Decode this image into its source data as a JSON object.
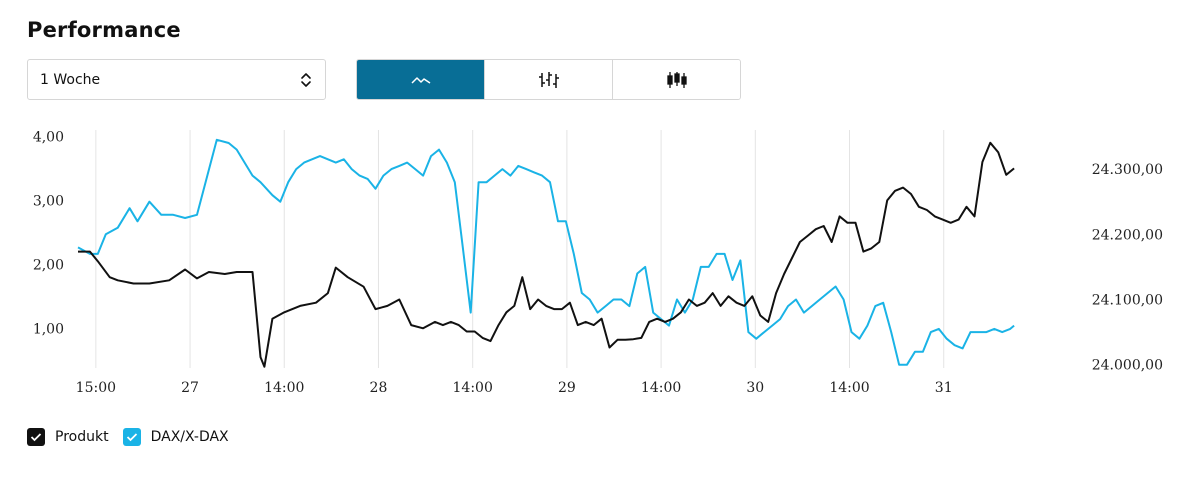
{
  "header": {
    "title": "Performance"
  },
  "period_select": {
    "value": "1 Woche"
  },
  "chart_types": [
    {
      "name": "line-chart",
      "active": true
    },
    {
      "name": "ohlc-chart",
      "active": false
    },
    {
      "name": "candlestick-chart",
      "active": false
    }
  ],
  "legend": [
    {
      "label": "Produkt",
      "color": "#111111"
    },
    {
      "label": "DAX/X-DAX",
      "color": "#1ab3e6"
    }
  ],
  "chart_data": {
    "type": "line",
    "x_ticks": [
      "15:00",
      "27",
      "14:00",
      "28",
      "14:00",
      "29",
      "14:00",
      "30",
      "14:00",
      "31"
    ],
    "x_range": [
      0,
      24
    ],
    "left_axis": {
      "ticks": [
        "1,00",
        "2,00",
        "3,00",
        "4,00"
      ],
      "tick_values": [
        1,
        2,
        3,
        4
      ],
      "range": [
        0.38,
        4.1
      ]
    },
    "right_axis": {
      "ticks": [
        "24.000,00",
        "24.100,00",
        "24.200,00",
        "24.300,00"
      ],
      "tick_values": [
        24000,
        24100,
        24200,
        24300
      ],
      "range": [
        23995,
        24360
      ]
    },
    "grid": "vertical",
    "series": [
      {
        "name": "Produkt",
        "axis": "left",
        "color": "#111111",
        "x": [
          0,
          0.3,
          0.5,
          0.8,
          1.0,
          1.4,
          1.8,
          2.3,
          2.7,
          3.0,
          3.3,
          3.7,
          4.0,
          4.4,
          4.6,
          4.7,
          4.9,
          5.2,
          5.6,
          6.0,
          6.3,
          6.5,
          6.8,
          7.2,
          7.5,
          7.8,
          8.1,
          8.4,
          8.7,
          9.0,
          9.2,
          9.4,
          9.6,
          9.8,
          10.0,
          10.2,
          10.4,
          10.6,
          10.8,
          11.0,
          11.2,
          11.4,
          11.6,
          11.8,
          12.0,
          12.2,
          12.4,
          12.6,
          12.8,
          13.0,
          13.2,
          13.4,
          13.6,
          13.8,
          14.0,
          14.2,
          14.4,
          14.6,
          14.8,
          15.0,
          15.2,
          15.4,
          15.6,
          15.8,
          16.0,
          16.2,
          16.4,
          16.6,
          16.8,
          17.0,
          17.2,
          17.4,
          17.6,
          17.8,
          18.0,
          18.2,
          18.4,
          18.6,
          18.8,
          19.0,
          19.2,
          19.4,
          19.6,
          19.8,
          20.0,
          20.2,
          20.4,
          20.6,
          20.8,
          21.0,
          21.2,
          21.4,
          21.6,
          21.8,
          22.0,
          22.2,
          22.4,
          22.6,
          22.8,
          23.0,
          23.2,
          23.4,
          23.6
        ],
        "values": [
          2.2,
          2.2,
          2.05,
          1.8,
          1.75,
          1.7,
          1.7,
          1.75,
          1.92,
          1.78,
          1.88,
          1.85,
          1.88,
          1.88,
          0.55,
          0.4,
          1.15,
          1.25,
          1.35,
          1.4,
          1.55,
          1.95,
          1.8,
          1.65,
          1.3,
          1.35,
          1.45,
          1.05,
          1.0,
          1.1,
          1.05,
          1.1,
          1.05,
          0.95,
          0.95,
          0.85,
          0.8,
          1.05,
          1.25,
          1.35,
          1.8,
          1.3,
          1.45,
          1.35,
          1.3,
          1.3,
          1.4,
          1.05,
          1.1,
          1.05,
          1.15,
          0.7,
          0.82,
          0.82,
          0.83,
          0.85,
          1.1,
          1.15,
          1.1,
          1.15,
          1.25,
          1.45,
          1.35,
          1.4,
          1.55,
          1.35,
          1.5,
          1.4,
          1.35,
          1.5,
          1.2,
          1.1,
          1.55,
          1.85,
          2.1,
          2.35,
          2.45,
          2.55,
          2.6,
          2.35,
          2.75,
          2.65,
          2.65,
          2.2,
          2.25,
          2.35,
          3.0,
          3.15,
          3.2,
          3.1,
          2.9,
          2.85,
          2.75,
          2.7,
          2.65,
          2.7,
          2.9,
          2.75,
          3.6,
          3.9,
          3.75,
          3.4,
          3.5
        ]
      },
      {
        "name": "DAX/X-DAX",
        "axis": "right",
        "color": "#1ab3e6",
        "x": [
          0,
          0.3,
          0.5,
          0.7,
          1.0,
          1.3,
          1.5,
          1.8,
          2.1,
          2.4,
          2.7,
          3.0,
          3.5,
          3.8,
          4.0,
          4.2,
          4.4,
          4.6,
          4.9,
          5.1,
          5.3,
          5.5,
          5.7,
          5.9,
          6.1,
          6.3,
          6.5,
          6.7,
          6.9,
          7.1,
          7.3,
          7.5,
          7.7,
          7.9,
          8.1,
          8.3,
          8.5,
          8.7,
          8.9,
          9.1,
          9.3,
          9.5,
          9.7,
          9.9,
          10.1,
          10.3,
          10.5,
          10.7,
          10.9,
          11.1,
          11.3,
          11.5,
          11.7,
          11.9,
          12.1,
          12.3,
          12.5,
          12.7,
          12.9,
          13.1,
          13.3,
          13.5,
          13.7,
          13.9,
          14.1,
          14.3,
          14.5,
          14.7,
          14.9,
          15.1,
          15.3,
          15.5,
          15.7,
          15.9,
          16.1,
          16.3,
          16.5,
          16.7,
          16.9,
          17.1,
          17.3,
          17.5,
          17.7,
          17.9,
          18.1,
          18.3,
          18.5,
          18.7,
          18.9,
          19.1,
          19.3,
          19.5,
          19.7,
          19.9,
          20.1,
          20.3,
          20.5,
          20.7,
          20.9,
          21.1,
          21.3,
          21.5,
          21.7,
          21.9,
          22.1,
          22.3,
          22.5,
          22.7,
          22.9,
          23.1,
          23.3,
          23.5,
          23.6
        ],
        "values": [
          24180,
          24170,
          24170,
          24200,
          24210,
          24240,
          24220,
          24250,
          24230,
          24230,
          24225,
          24230,
          24345,
          24340,
          24330,
          24310,
          24290,
          24280,
          24260,
          24250,
          24280,
          24300,
          24310,
          24315,
          24320,
          24315,
          24310,
          24315,
          24300,
          24290,
          24285,
          24270,
          24290,
          24300,
          24305,
          24310,
          24300,
          24290,
          24320,
          24330,
          24310,
          24280,
          24180,
          24080,
          24280,
          24280,
          24290,
          24300,
          24290,
          24305,
          24300,
          24295,
          24290,
          24280,
          24220,
          24220,
          24170,
          24110,
          24100,
          24080,
          24090,
          24100,
          24100,
          24090,
          24140,
          24150,
          24080,
          24070,
          24060,
          24100,
          24080,
          24100,
          24150,
          24150,
          24170,
          24170,
          24130,
          24160,
          24050,
          24040,
          24050,
          24060,
          24070,
          24090,
          24100,
          24080,
          24090,
          24100,
          24110,
          24120,
          24100,
          24050,
          24040,
          24060,
          24090,
          24095,
          24050,
          24000,
          24000,
          24020,
          24020,
          24050,
          24055,
          24040,
          24030,
          24025,
          24050,
          24050,
          24050,
          24055,
          24050,
          24055,
          24060
        ]
      }
    ]
  }
}
